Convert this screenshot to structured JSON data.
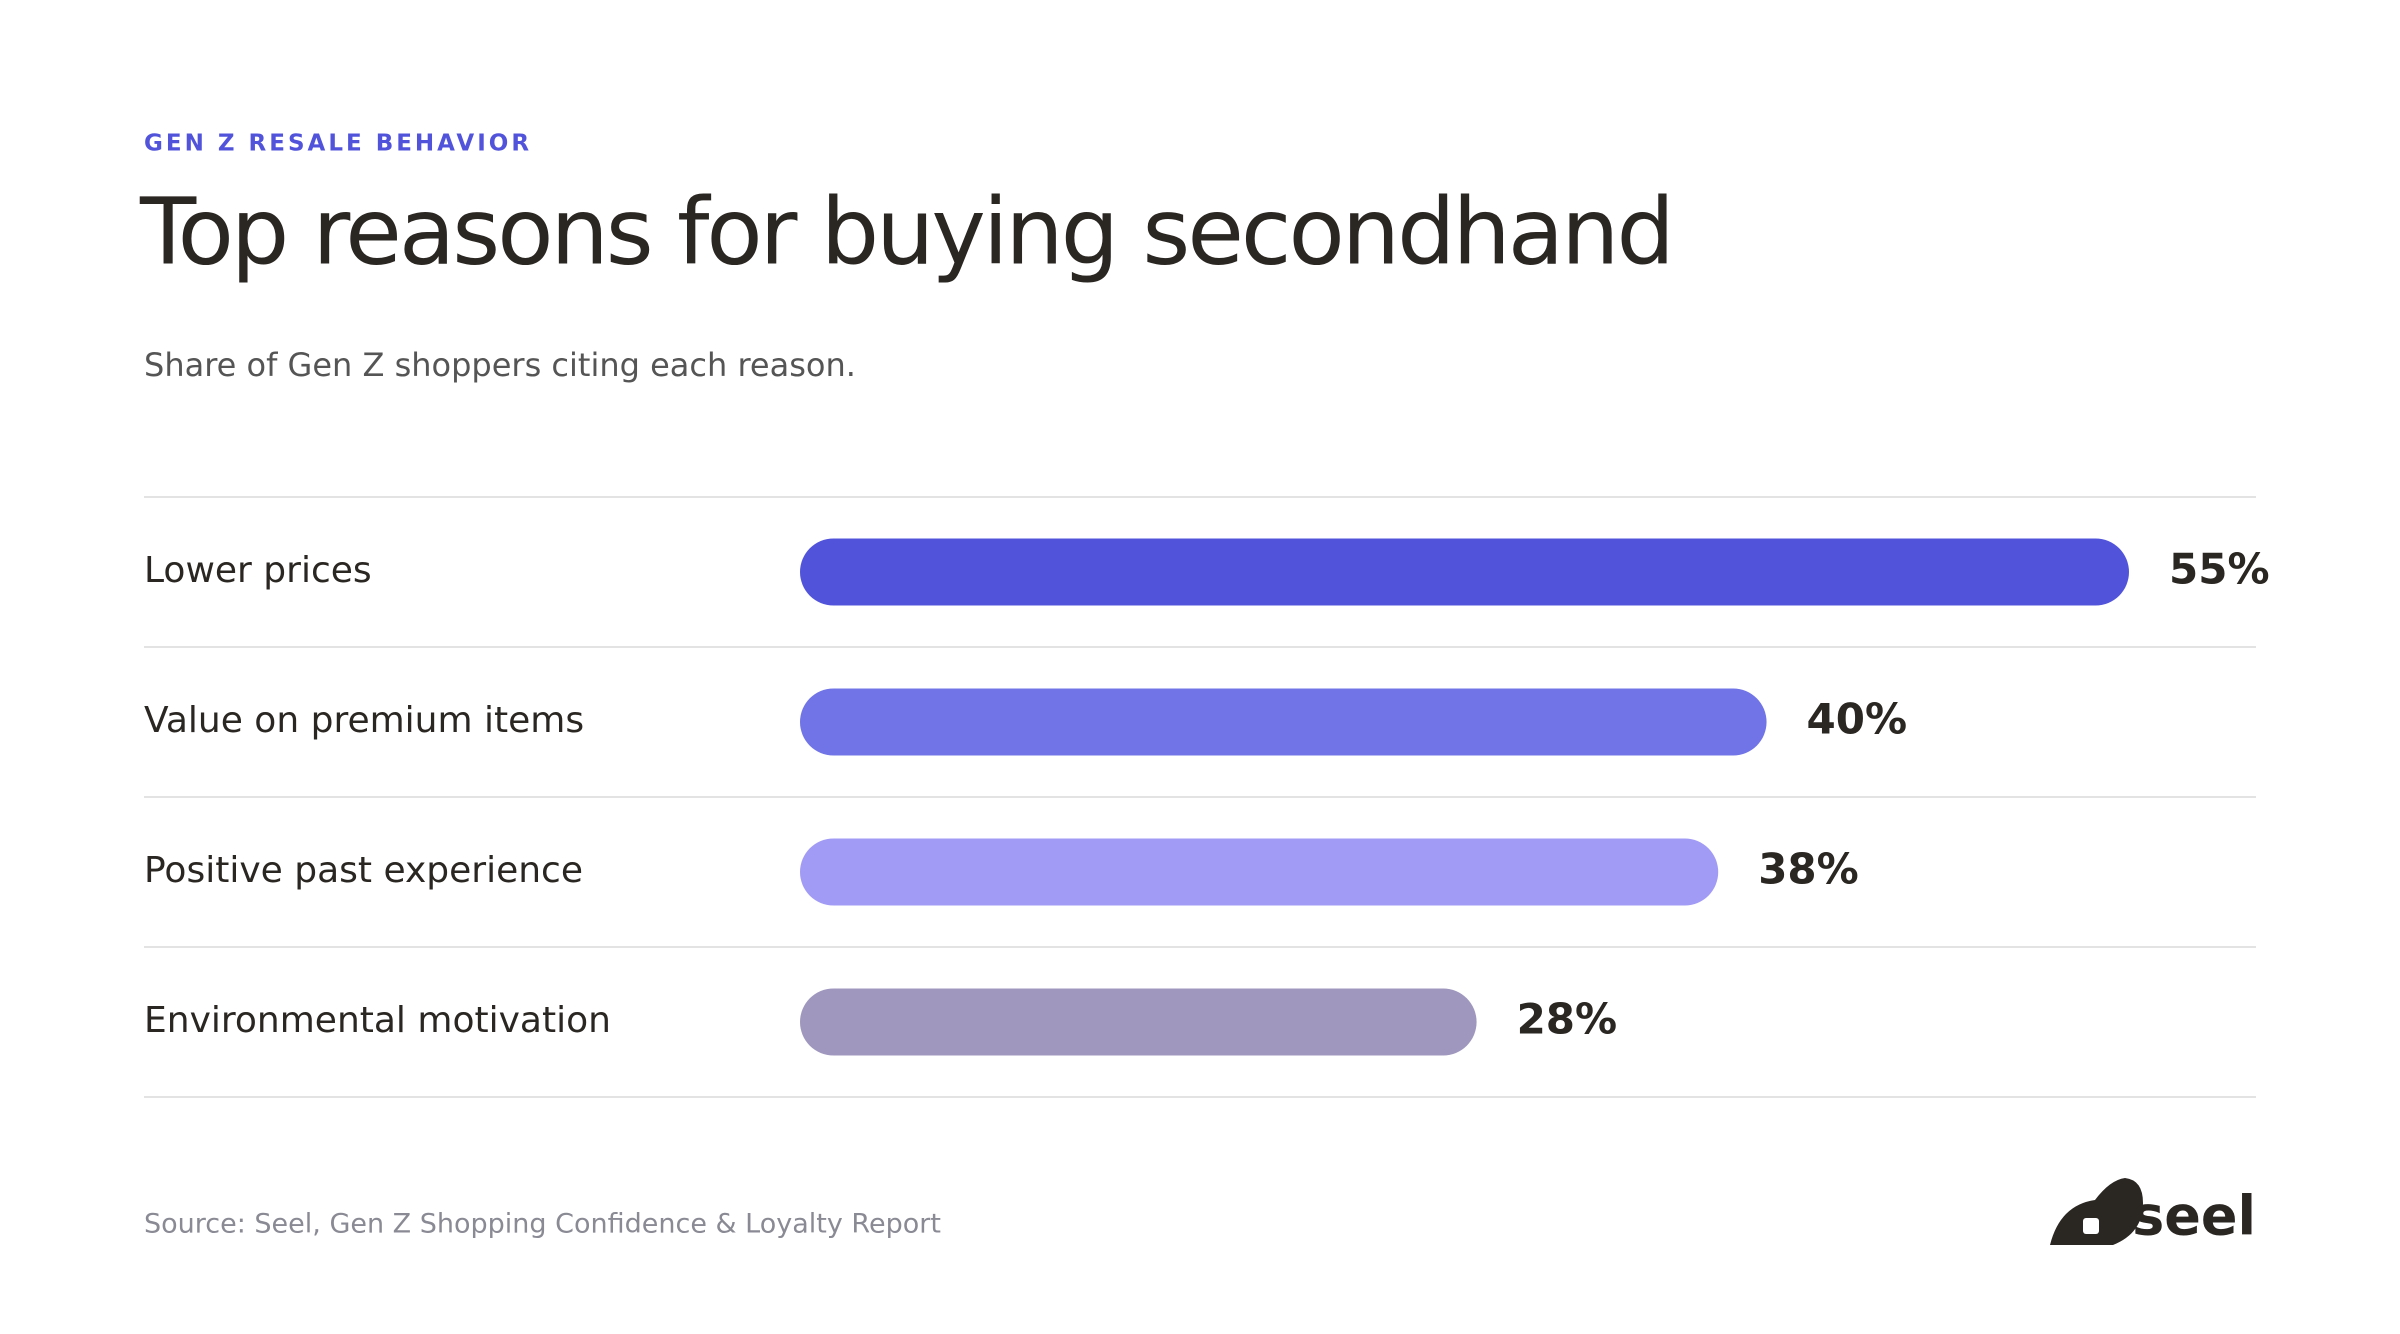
{
  "chart_data": {
    "type": "bar",
    "orientation": "horizontal",
    "kicker": "GEN Z RESALE BEHAVIOR",
    "title": "Top reasons for buying secondhand",
    "subtitle": "Share of Gen Z shoppers citing each reason.",
    "categories": [
      "Lower prices",
      "Value on premium items",
      "Positive past experience",
      "Environmental motivation"
    ],
    "values": [
      55,
      40,
      38,
      28
    ],
    "value_labels": [
      "55%",
      "40%",
      "38%",
      "28%"
    ],
    "colors": [
      "#5154db",
      "#7074e6",
      "#a29bf5",
      "#a097be"
    ],
    "source": "Source: Seel, Gen Z Shopping Confidence & Loyalty Report"
  },
  "brand": {
    "logo_text": "seel"
  }
}
